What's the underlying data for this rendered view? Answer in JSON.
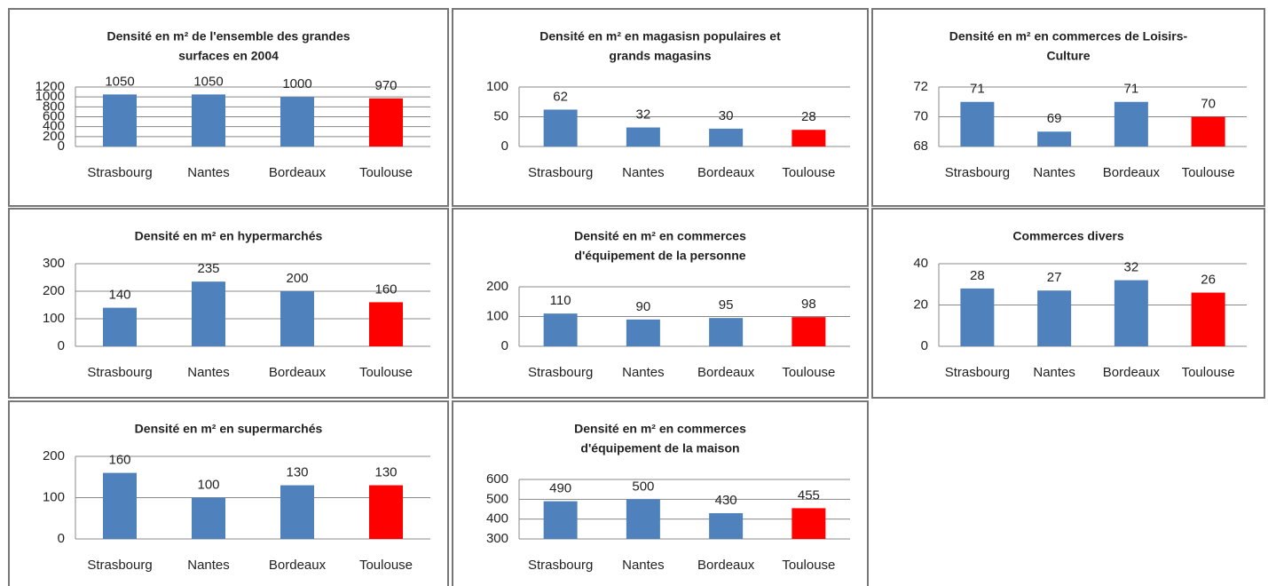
{
  "chart_data": [
    {
      "type": "bar",
      "title": [
        "Densité en m² de l'ensemble des grandes",
        "surfaces en 2004"
      ],
      "categories": [
        "Strasbourg",
        "Nantes",
        "Bordeaux",
        "Toulouse"
      ],
      "values": [
        1050,
        1050,
        1000,
        970
      ],
      "colors": [
        "#4f81bd",
        "#4f81bd",
        "#4f81bd",
        "#ff0000"
      ],
      "ylim": [
        0,
        1200
      ],
      "yticks": [
        0,
        200,
        400,
        600,
        800,
        1000,
        1200
      ],
      "grid": true
    },
    {
      "type": "bar",
      "title": [
        "Densité en m² en magasisn populaires et",
        "grands magasins"
      ],
      "categories": [
        "Strasbourg",
        "Nantes",
        "Bordeaux",
        "Toulouse"
      ],
      "values": [
        62,
        32,
        30,
        28
      ],
      "colors": [
        "#4f81bd",
        "#4f81bd",
        "#4f81bd",
        "#ff0000"
      ],
      "ylim": [
        0,
        100
      ],
      "yticks": [
        0,
        50,
        100
      ],
      "grid": true
    },
    {
      "type": "bar",
      "title": [
        "Densité en m² en commerces de Loisirs-",
        "Culture"
      ],
      "categories": [
        "Strasbourg",
        "Nantes",
        "Bordeaux",
        "Toulouse"
      ],
      "values": [
        71,
        69,
        71,
        70
      ],
      "colors": [
        "#4f81bd",
        "#4f81bd",
        "#4f81bd",
        "#ff0000"
      ],
      "ylim": [
        68,
        72
      ],
      "yticks": [
        68,
        70,
        72
      ],
      "grid": true
    },
    {
      "type": "bar",
      "title": [
        "Densité en m² en hypermarchés"
      ],
      "categories": [
        "Strasbourg",
        "Nantes",
        "Bordeaux",
        "Toulouse"
      ],
      "values": [
        140,
        235,
        200,
        160
      ],
      "colors": [
        "#4f81bd",
        "#4f81bd",
        "#4f81bd",
        "#ff0000"
      ],
      "ylim": [
        0,
        300
      ],
      "yticks": [
        0,
        100,
        200,
        300
      ],
      "grid": true
    },
    {
      "type": "bar",
      "title": [
        "Densité en m² en commerces",
        "d'équipement de la personne"
      ],
      "categories": [
        "Strasbourg",
        "Nantes",
        "Bordeaux",
        "Toulouse"
      ],
      "values": [
        110,
        90,
        95,
        98
      ],
      "colors": [
        "#4f81bd",
        "#4f81bd",
        "#4f81bd",
        "#ff0000"
      ],
      "ylim": [
        0,
        200
      ],
      "yticks": [
        0,
        100,
        200
      ],
      "grid": true
    },
    {
      "type": "bar",
      "title": [
        "Commerces divers"
      ],
      "categories": [
        "Strasbourg",
        "Nantes",
        "Bordeaux",
        "Toulouse"
      ],
      "values": [
        28,
        27,
        32,
        26
      ],
      "colors": [
        "#4f81bd",
        "#4f81bd",
        "#4f81bd",
        "#ff0000"
      ],
      "ylim": [
        0,
        40
      ],
      "yticks": [
        0,
        20,
        40
      ],
      "grid": true
    },
    {
      "type": "bar",
      "title": [
        "Densité en m² en supermarchés"
      ],
      "categories": [
        "Strasbourg",
        "Nantes",
        "Bordeaux",
        "Toulouse"
      ],
      "values": [
        160,
        100,
        130,
        130
      ],
      "colors": [
        "#4f81bd",
        "#4f81bd",
        "#4f81bd",
        "#ff0000"
      ],
      "ylim": [
        0,
        200
      ],
      "yticks": [
        0,
        100,
        200
      ],
      "grid": true
    },
    {
      "type": "bar",
      "title": [
        "Densité en m² en commerces",
        "d'équipement de la maison"
      ],
      "categories": [
        "Strasbourg",
        "Nantes",
        "Bordeaux",
        "Toulouse"
      ],
      "values": [
        490,
        500,
        430,
        455
      ],
      "colors": [
        "#4f81bd",
        "#4f81bd",
        "#4f81bd",
        "#ff0000"
      ],
      "ylim": [
        300,
        600
      ],
      "yticks": [
        300,
        400,
        500,
        600
      ],
      "grid": true
    }
  ]
}
